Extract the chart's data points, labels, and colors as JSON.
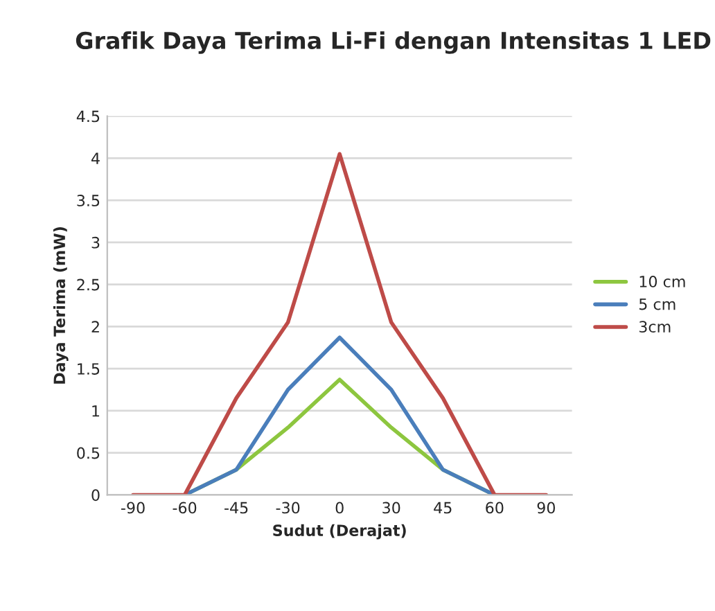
{
  "chart_data": {
    "type": "line",
    "title": "Grafik Daya Terima Li-Fi dengan Intensitas 1 LED",
    "xlabel": "Sudut (Derajat)",
    "ylabel": "Daya Terima (mW)",
    "categories": [
      "-90",
      "-60",
      "-45",
      "-30",
      "0",
      "30",
      "45",
      "60",
      "90"
    ],
    "series": [
      {
        "name": "10 cm",
        "color": "#8dc63f",
        "values": [
          null,
          0,
          0.3,
          0.8,
          1.37,
          0.8,
          0.3,
          0,
          null
        ]
      },
      {
        "name": "5 cm",
        "color": "#4a7ebb",
        "values": [
          null,
          0,
          0.3,
          1.25,
          1.87,
          1.25,
          0.3,
          0,
          null
        ]
      },
      {
        "name": "3cm",
        "color": "#be4b48",
        "values": [
          0,
          0,
          1.15,
          2.05,
          4.05,
          2.05,
          1.15,
          0,
          0
        ]
      }
    ],
    "ylim": [
      0,
      4.5
    ],
    "yticks": [
      0,
      0.5,
      1,
      1.5,
      2,
      2.5,
      3,
      3.5,
      4,
      4.5
    ],
    "grid": "y",
    "legend": "right",
    "marker": "none",
    "line_style": "solid"
  }
}
